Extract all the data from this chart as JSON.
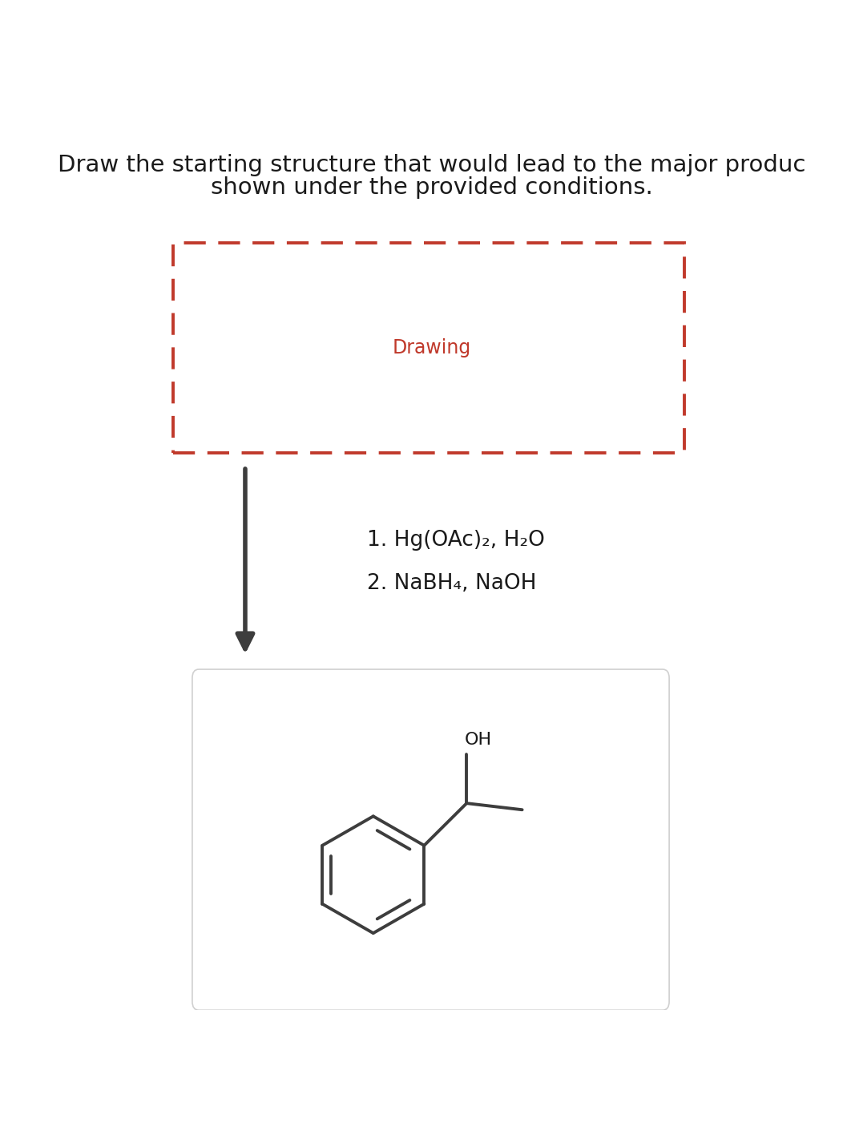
{
  "title_line1": "Draw the starting structure that would lead to the major produc",
  "title_line2": "shown under the provided conditions.",
  "drawing_label": "Drawing",
  "step1": "1. Hg(OAc)₂, H₂O",
  "step2": "2. NaBH₄, NaOH",
  "product_label": "OH",
  "bg_color": "#ffffff",
  "dashed_box_color": "#c0392b",
  "arrow_color": "#3d3d3d",
  "molecule_color": "#3d3d3d",
  "title_fontsize": 21,
  "drawing_fontsize": 17,
  "step_fontsize": 19,
  "product_label_fontsize": 16
}
